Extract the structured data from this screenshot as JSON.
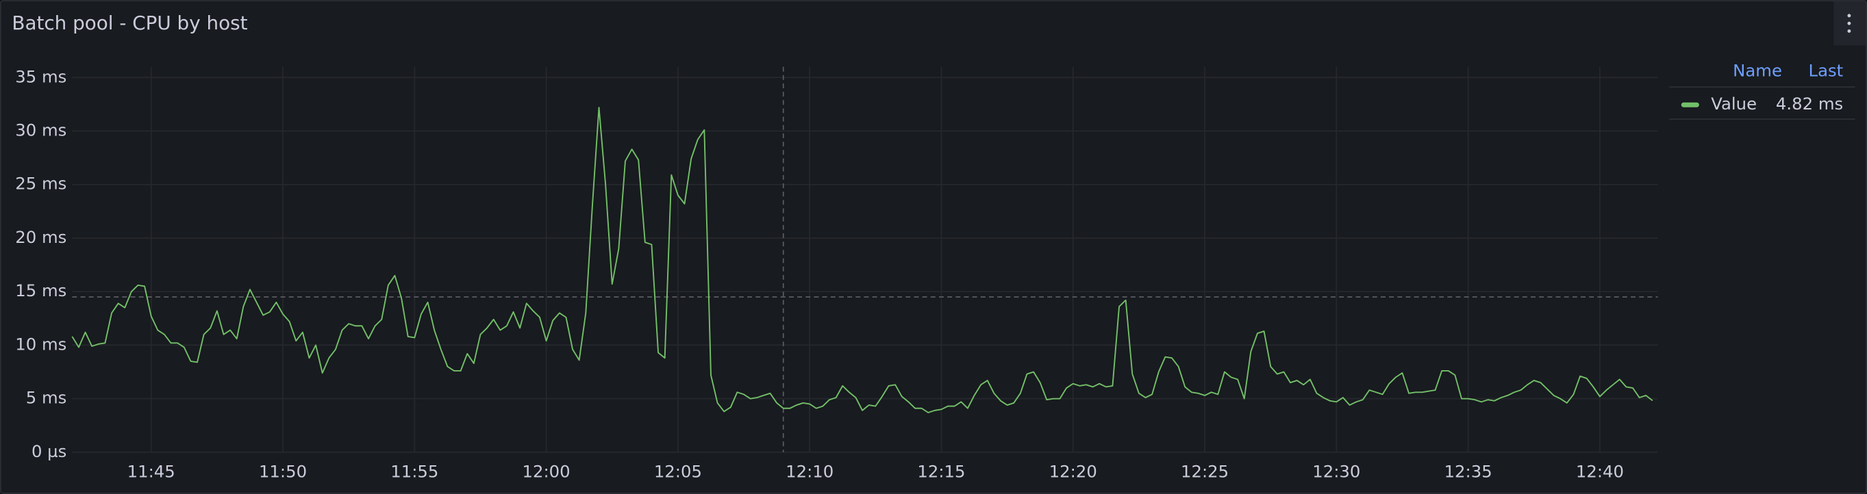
{
  "chart_data": {
    "type": "line",
    "title": "Batch pool - CPU by host",
    "x": [
      702,
      702.25,
      702.5,
      702.75,
      703,
      703.25,
      703.5,
      703.75,
      704,
      704.25,
      704.5,
      704.75,
      705,
      705.25,
      705.5,
      705.75,
      706,
      706.25,
      706.5,
      706.75,
      707,
      707.25,
      707.5,
      707.75,
      708,
      708.25,
      708.5,
      708.75,
      709,
      709.25,
      709.5,
      709.75,
      710,
      710.25,
      710.5,
      710.75,
      711,
      711.25,
      711.5,
      711.75,
      712,
      712.25,
      712.5,
      712.75,
      713,
      713.25,
      713.5,
      713.75,
      714,
      714.25,
      714.5,
      714.75,
      715,
      715.25,
      715.5,
      715.75,
      716,
      716.25,
      716.5,
      716.75,
      717,
      717.25,
      717.5,
      717.75,
      718,
      718.25,
      718.5,
      718.75,
      719,
      719.25,
      719.5,
      719.75,
      720,
      720.25,
      720.5,
      720.75,
      721,
      721.25,
      721.5,
      721.75,
      722,
      722.25,
      722.5,
      722.75,
      723,
      723.25,
      723.5,
      723.75,
      724,
      724.25,
      724.5,
      724.75,
      725,
      725.25,
      725.5,
      725.75,
      726,
      726.25,
      726.5,
      726.75,
      727,
      727.25,
      727.5,
      727.75,
      728,
      728.25,
      728.5,
      728.75,
      729,
      729.25,
      729.5,
      729.75,
      730,
      730.25,
      730.5,
      730.75,
      731,
      731.25,
      731.5,
      731.75,
      732,
      732.25,
      732.5,
      732.75,
      733,
      733.25,
      733.5,
      733.75,
      734,
      734.25,
      734.5,
      734.75,
      735,
      735.25,
      735.5,
      735.75,
      736,
      736.25,
      736.5,
      736.75,
      737,
      737.25,
      737.5,
      737.75,
      738,
      738.25,
      738.5,
      738.75,
      739,
      739.25,
      739.5,
      739.75,
      740,
      740.25,
      740.5,
      740.75,
      741,
      741.25,
      741.5,
      741.75,
      742,
      742.25,
      742.5,
      742.75,
      743,
      743.25,
      743.5,
      743.75,
      744,
      744.25,
      744.5,
      744.75,
      745,
      745.25,
      745.5,
      745.75,
      746,
      746.25,
      746.5,
      746.75,
      747,
      747.25,
      747.5,
      747.75,
      748,
      748.25,
      748.5,
      748.75,
      749,
      749.25,
      749.5,
      749.75,
      750,
      750.25,
      750.5,
      750.75,
      751,
      751.25,
      751.5,
      751.75,
      752,
      752.25,
      752.5,
      752.75,
      753,
      753.25,
      753.5,
      753.75,
      754,
      754.25,
      754.5,
      754.75,
      755,
      755.25,
      755.5,
      755.75,
      756,
      756.25,
      756.5,
      756.75,
      757,
      757.25,
      757.5,
      757.75,
      758,
      758.25,
      758.5,
      758.75,
      759,
      759.25,
      759.5,
      759.75,
      760,
      760.25,
      760.5,
      760.75,
      761,
      761.25,
      761.5,
      761.75,
      762
    ],
    "series": [
      {
        "name": "Value",
        "color": "#73bf69",
        "values": [
          10.8,
          9.8,
          11.2,
          9.9,
          10.1,
          10.2,
          13,
          13.9,
          13.5,
          15,
          15.6,
          15.5,
          12.7,
          11.4,
          11,
          10.2,
          10.2,
          9.8,
          8.5,
          8.4,
          11,
          11.6,
          13.2,
          11,
          11.4,
          10.6,
          13.6,
          15.2,
          14,
          12.8,
          13.1,
          14,
          12.9,
          12.2,
          10.4,
          11.2,
          8.8,
          10,
          7.4,
          8.8,
          9.6,
          11.4,
          12,
          11.8,
          11.8,
          10.6,
          11.8,
          12.4,
          15.6,
          16.5,
          14.4,
          10.8,
          10.7,
          12.9,
          14,
          11.4,
          9.6,
          8,
          7.6,
          7.6,
          9.2,
          8.3,
          11,
          11.6,
          12.4,
          11.4,
          11.8,
          13.1,
          11.6,
          13.9,
          13.2,
          12.6,
          10.4,
          12.3,
          13,
          12.6,
          9.6,
          8.6,
          13,
          23,
          32.2,
          25,
          15.7,
          19,
          27.2,
          28.3,
          27.3,
          19.6,
          19.4,
          9.3,
          8.8,
          25.9,
          24,
          23.2,
          27.4,
          29.2,
          30.1,
          7.2,
          4.6,
          3.8,
          4.2,
          5.6,
          5.4,
          5,
          5.1,
          5.3,
          5.5,
          4.6,
          4.1,
          4.1,
          4.4,
          4.6,
          4.5,
          4.1,
          4.3,
          4.9,
          5.1,
          6.2,
          5.6,
          5.1,
          3.9,
          4.4,
          4.3,
          5.2,
          6.2,
          6.3,
          5.2,
          4.7,
          4.1,
          4.1,
          3.7,
          3.9,
          4,
          4.3,
          4.3,
          4.7,
          4.1,
          5.3,
          6.3,
          6.7,
          5.5,
          4.8,
          4.4,
          4.6,
          5.5,
          7.3,
          7.5,
          6.5,
          4.9,
          5,
          5,
          6,
          6.4,
          6.2,
          6.3,
          6.1,
          6.4,
          6.1,
          6.2,
          13.6,
          14.2,
          7.3,
          5.5,
          5.1,
          5.4,
          7.5,
          8.9,
          8.8,
          8,
          6.1,
          5.6,
          5.5,
          5.3,
          5.6,
          5.4,
          7.5,
          7,
          6.8,
          5,
          9.4,
          11.1,
          11.3,
          8,
          7.3,
          7.5,
          6.5,
          6.7,
          6.3,
          6.8,
          5.5,
          5.1,
          4.8,
          4.7,
          5.1,
          4.4,
          4.7,
          4.9,
          5.8,
          5.6,
          5.4,
          6.4,
          7,
          7.4,
          5.5,
          5.6,
          5.6,
          5.7,
          5.8,
          7.6,
          7.6,
          7.2,
          5,
          5,
          4.9,
          4.7,
          4.9,
          4.8,
          5.1,
          5.3,
          5.6,
          5.8,
          6.3,
          6.7,
          6.5,
          5.9,
          5.3,
          5,
          4.6,
          5.4,
          7.1,
          6.9,
          6.1,
          5.2,
          5.8,
          6.3,
          6.8,
          6.1,
          6,
          5.1,
          5.3,
          4.82
        ],
        "last": {
          "value": 4.82,
          "label": "4.82 ms"
        }
      }
    ],
    "legend_columns": [
      "Name",
      "Last"
    ],
    "xlim": [
      702,
      762.2
    ],
    "xticks": [
      {
        "value": 705,
        "label": "11:45"
      },
      {
        "value": 710,
        "label": "11:50"
      },
      {
        "value": 715,
        "label": "11:55"
      },
      {
        "value": 720,
        "label": "12:00"
      },
      {
        "value": 725,
        "label": "12:05"
      },
      {
        "value": 730,
        "label": "12:10"
      },
      {
        "value": 735,
        "label": "12:15"
      },
      {
        "value": 740,
        "label": "12:20"
      },
      {
        "value": 745,
        "label": "12:25"
      },
      {
        "value": 750,
        "label": "12:30"
      },
      {
        "value": 755,
        "label": "12:35"
      },
      {
        "value": 760,
        "label": "12:40"
      }
    ],
    "ylim": [
      0,
      36
    ],
    "yticks": [
      {
        "value": 0,
        "label": "0 µs"
      },
      {
        "value": 5,
        "label": "5 ms"
      },
      {
        "value": 10,
        "label": "10 ms"
      },
      {
        "value": 15,
        "label": "15 ms"
      },
      {
        "value": 20,
        "label": "20 ms"
      },
      {
        "value": 25,
        "label": "25 ms"
      },
      {
        "value": 30,
        "label": "30 ms"
      },
      {
        "value": 35,
        "label": "35 ms"
      }
    ],
    "grid": true,
    "threshold": 14.5,
    "cursor_x": 729
  }
}
